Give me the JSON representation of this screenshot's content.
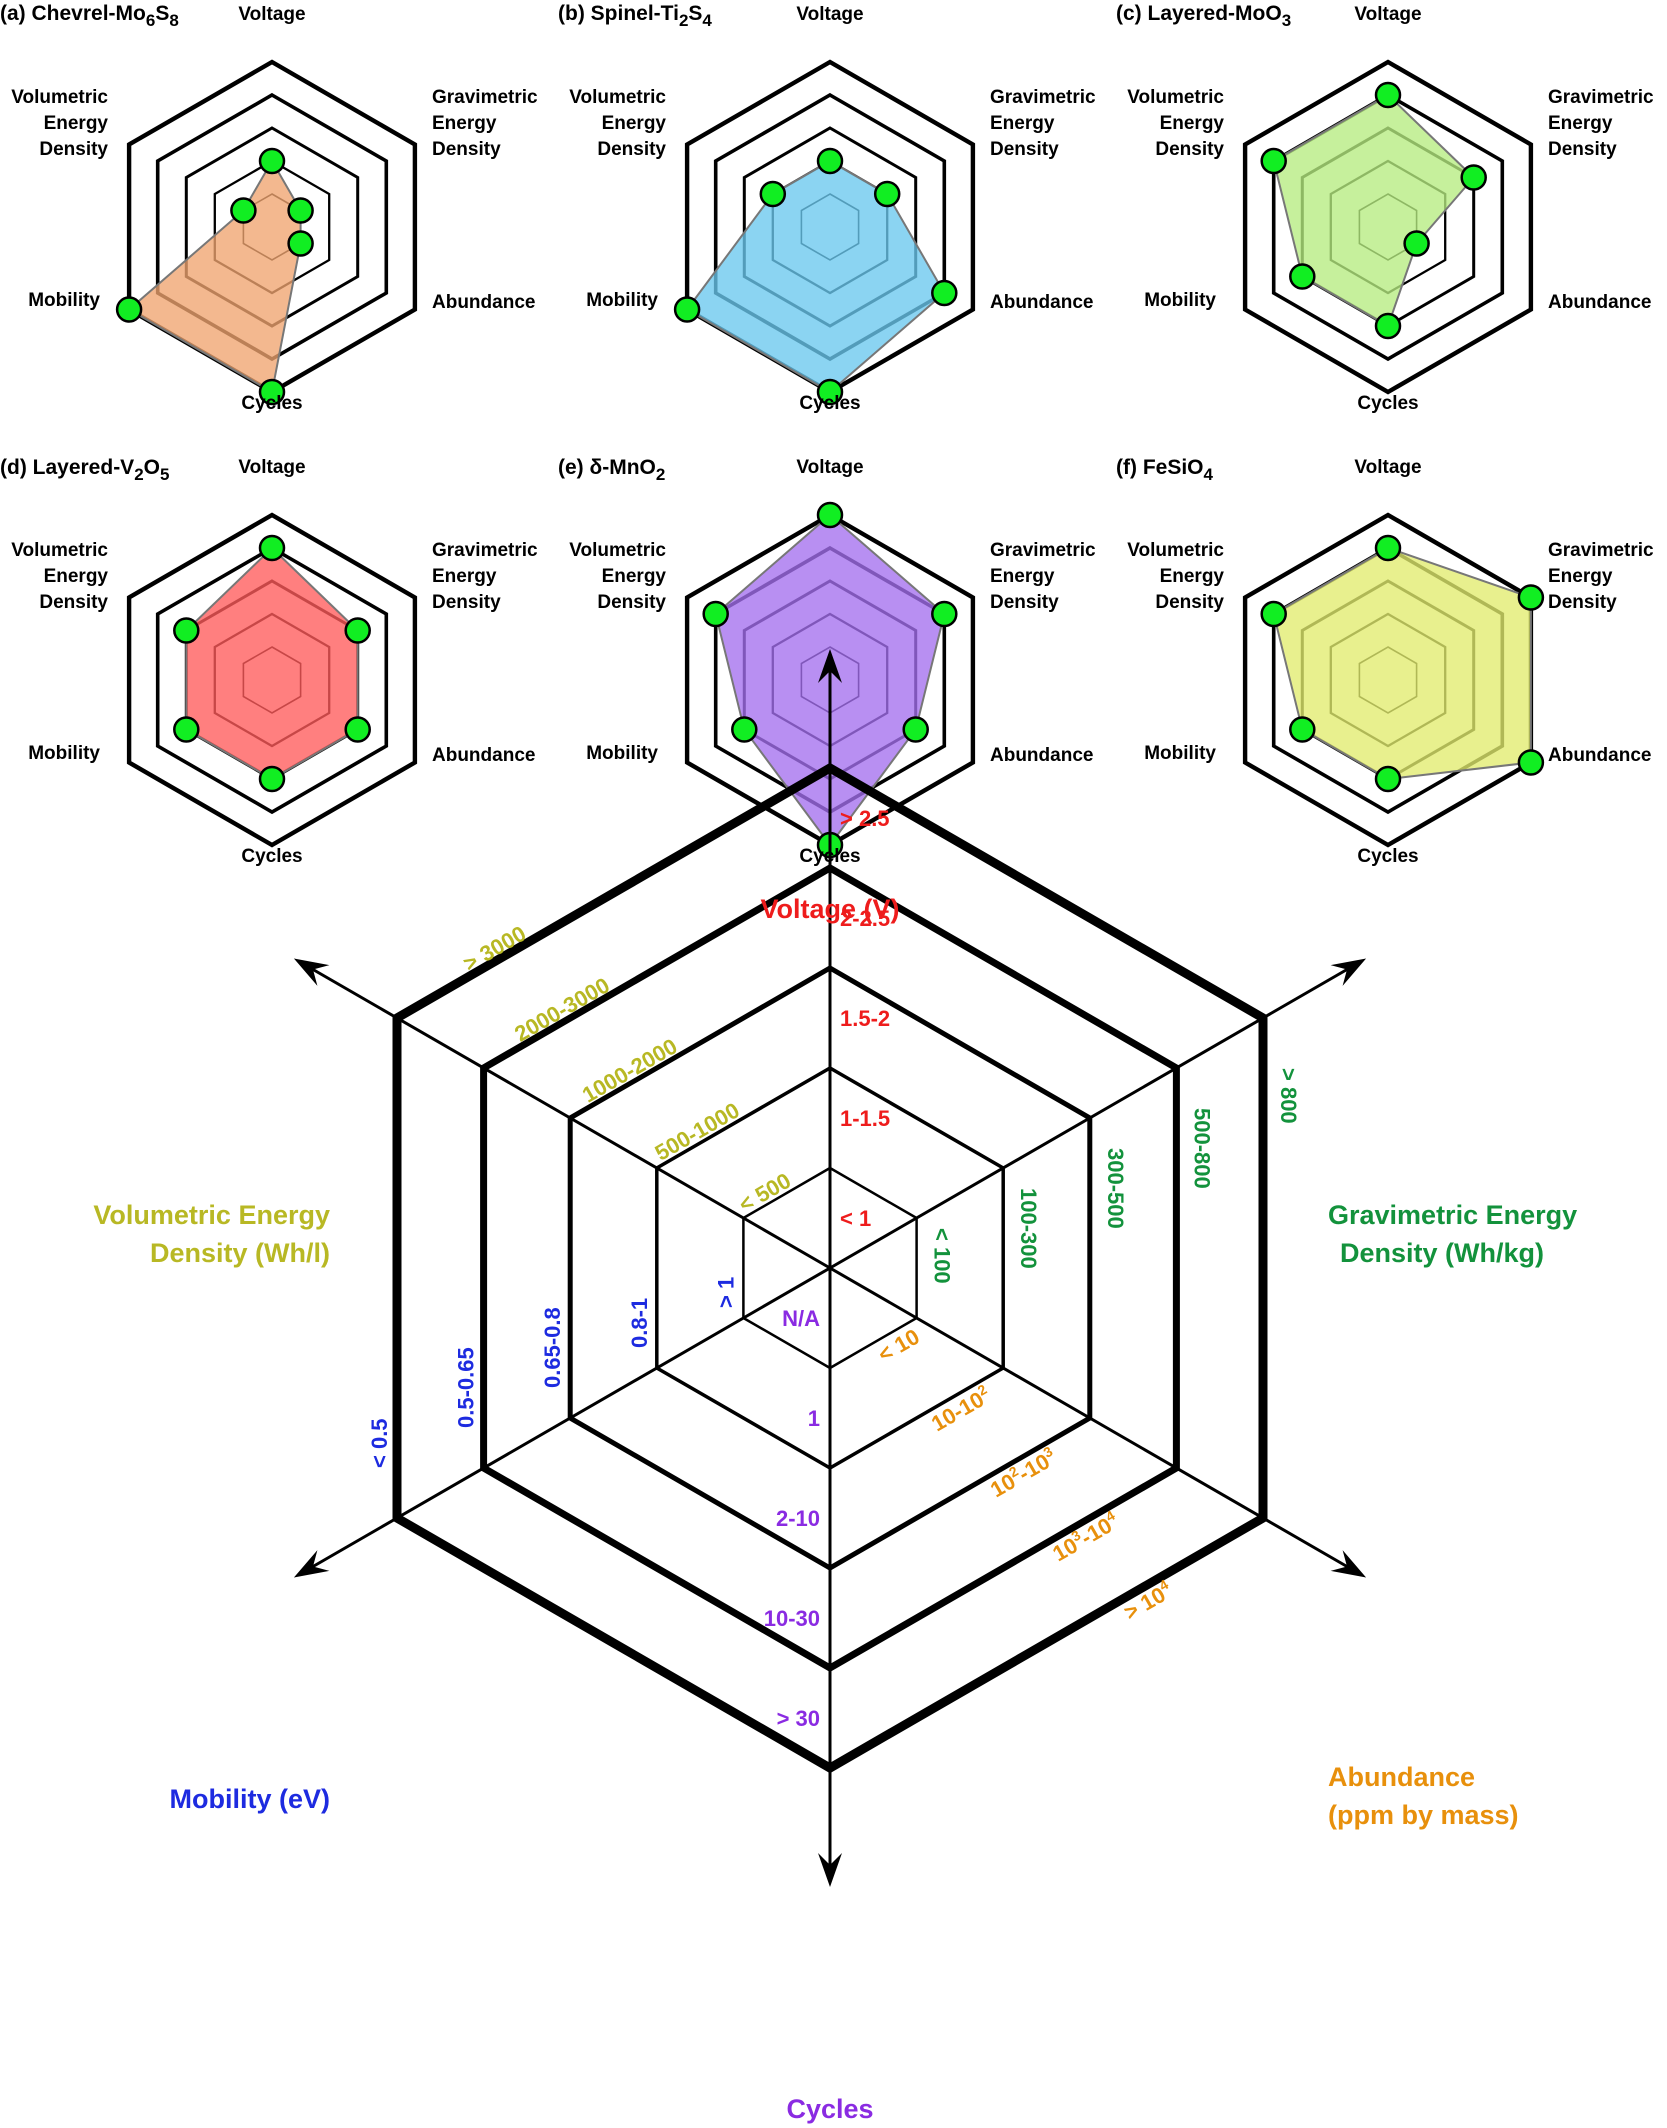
{
  "colors": {
    "voltage": "#ee1c1c",
    "gravimetric": "#13923c",
    "abundance": "#e8900c",
    "cycles": "#8a2be2",
    "mobility": "#1d2be0",
    "volumetric": "#b8b824",
    "marker": "#11ee22"
  },
  "chart_data": [
    {
      "type": "radar",
      "title": "(a) Chevrel-Mo6S8",
      "title_parts": {
        "main": "(a) Chevrel-Mo",
        "s1": "6",
        "m2": "S",
        "s2": "8"
      },
      "axes": [
        "Voltage",
        "Gravimetric Energy Density",
        "Abundance",
        "Cycles",
        "Mobility",
        "Volumetric Energy Density"
      ],
      "levels": 5,
      "values": [
        2,
        1,
        1,
        5,
        5,
        1
      ],
      "fill": "#f0a470"
    },
    {
      "type": "radar",
      "title": "(b) Spinel-Ti2S4",
      "title_parts": {
        "main": "(b) Spinel-Ti",
        "s1": "2",
        "m2": "S",
        "s2": "4"
      },
      "axes": [
        "Voltage",
        "Gravimetric Energy Density",
        "Abundance",
        "Cycles",
        "Mobility",
        "Volumetric Energy Density"
      ],
      "levels": 5,
      "values": [
        2,
        2,
        4,
        5,
        5,
        2
      ],
      "fill": "#6ac8ee"
    },
    {
      "type": "radar",
      "title": "(c) Layered-MoO3",
      "title_parts": {
        "main": "(c) Layered-MoO",
        "s1": "3",
        "m2": "",
        "s2": ""
      },
      "axes": [
        "Voltage",
        "Gravimetric Energy Density",
        "Abundance",
        "Cycles",
        "Mobility",
        "Volumetric Energy Density"
      ],
      "levels": 5,
      "values": [
        4,
        3,
        1,
        3,
        3,
        4
      ],
      "fill": "#b6ec80"
    },
    {
      "type": "radar",
      "title": "(d) Layered-V2O5",
      "title_parts": {
        "main": "(d) Layered-V",
        "s1": "2",
        "m2": "O",
        "s2": "5"
      },
      "axes": [
        "Voltage",
        "Gravimetric Energy Density",
        "Abundance",
        "Cycles",
        "Mobility",
        "Volumetric Energy Density"
      ],
      "levels": 5,
      "values": [
        4,
        3,
        3,
        3,
        3,
        3
      ],
      "fill": "#ff5b5b"
    },
    {
      "type": "radar",
      "title": "(e) δ-MnO2",
      "title_parts": {
        "main": "(e) δ-MnO",
        "s1": "2",
        "m2": "",
        "s2": ""
      },
      "axes": [
        "Voltage",
        "Gravimetric Energy Density",
        "Abundance",
        "Cycles",
        "Mobility",
        "Volumetric Energy Density"
      ],
      "levels": 5,
      "values": [
        5,
        4,
        3,
        5,
        3,
        4
      ],
      "fill": "#a470ee"
    },
    {
      "type": "radar",
      "title": "(f) FeSiO4",
      "title_parts": {
        "main": "(f) FeSiO",
        "s1": "4",
        "m2": "",
        "s2": ""
      },
      "axes": [
        "Voltage",
        "Gravimetric Energy Density",
        "Abundance",
        "Cycles",
        "Mobility",
        "Volumetric Energy Density"
      ],
      "levels": 5,
      "values": [
        4,
        5,
        5,
        3,
        3,
        4
      ],
      "fill": "#e2ec6e"
    },
    {
      "type": "radar-legend",
      "title": "",
      "levels": 5,
      "axes": [
        {
          "name": "Voltage (V)",
          "color_key": "voltage",
          "ranges": [
            "< 1",
            "1-1.5",
            "1.5-2",
            "2-2.5",
            "> 2.5"
          ]
        },
        {
          "name": "Gravimetric Energy Density (Wh/kg)",
          "line1": "Gravimetric Energy",
          "line2": "Density (Wh/kg)",
          "color_key": "gravimetric",
          "ranges": [
            "< 100",
            "100-300",
            "300-500",
            "500-800",
            "> 800"
          ]
        },
        {
          "name": "Abundance (ppm by mass)",
          "line1": "Abundance",
          "line2": "(ppm by mass)",
          "color_key": "abundance",
          "ranges": [
            "< 10",
            "10-10^2",
            "10^2-10^3",
            "10^3-10^4",
            "> 10^4"
          ],
          "ranges_fmt": [
            {
              "a": "< 10",
              "sup": "",
              "b": "",
              "sup2": ""
            },
            {
              "a": "10-10",
              "sup": "2",
              "b": "",
              "sup2": ""
            },
            {
              "a": "10",
              "sup": "2",
              "b": "-10",
              "sup2": "3"
            },
            {
              "a": "10",
              "sup": "3",
              "b": "-10",
              "sup2": "4"
            },
            {
              "a": "> 10",
              "sup": "4",
              "b": "",
              "sup2": ""
            }
          ]
        },
        {
          "name": "Cycles",
          "color_key": "cycles",
          "ranges": [
            "N/A",
            "1",
            "2-10",
            "10-30",
            "> 30"
          ]
        },
        {
          "name": "Mobility (eV)",
          "color_key": "mobility",
          "ranges": [
            "> 1",
            "0.8-1",
            "0.65-0.8",
            "0.5-0.65",
            "< 0.5"
          ]
        },
        {
          "name": "Volumetric Energy Density (Wh/l)",
          "line1": "Volumetric Energy",
          "line2": "Density (Wh/l)",
          "color_key": "volumetric",
          "ranges": [
            "< 500",
            "500-1000",
            "1000-2000",
            "2000-3000",
            "> 3000"
          ]
        }
      ]
    }
  ]
}
